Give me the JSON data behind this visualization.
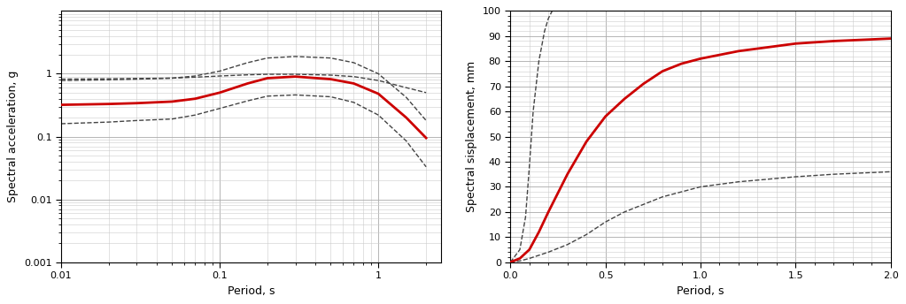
{
  "left": {
    "xlabel": "Period, s",
    "ylabel": "Spectral acceleration, g",
    "xlim": [
      0.01,
      2.5
    ],
    "ylim": [
      0.001,
      10.0
    ],
    "red_line": {
      "x": [
        0.01,
        0.02,
        0.03,
        0.05,
        0.07,
        0.1,
        0.15,
        0.2,
        0.3,
        0.5,
        0.7,
        1.0,
        1.5,
        2.0
      ],
      "y": [
        0.32,
        0.33,
        0.34,
        0.36,
        0.4,
        0.5,
        0.7,
        0.85,
        0.9,
        0.82,
        0.7,
        0.48,
        0.2,
        0.095
      ]
    },
    "dashed_upper": {
      "x": [
        0.01,
        0.02,
        0.03,
        0.05,
        0.07,
        0.1,
        0.15,
        0.2,
        0.3,
        0.5,
        0.7,
        1.0,
        1.5,
        2.0
      ],
      "y": [
        0.78,
        0.8,
        0.82,
        0.85,
        0.92,
        1.1,
        1.5,
        1.78,
        1.88,
        1.78,
        1.5,
        1.0,
        0.42,
        0.18
      ]
    },
    "dashed_mid": {
      "x": [
        0.01,
        0.02,
        0.03,
        0.05,
        0.07,
        0.1,
        0.15,
        0.2,
        0.3,
        0.5,
        0.7,
        1.0,
        1.5,
        2.0
      ],
      "y": [
        0.16,
        0.17,
        0.18,
        0.19,
        0.22,
        0.28,
        0.37,
        0.44,
        0.46,
        0.43,
        0.35,
        0.22,
        0.085,
        0.033
      ]
    },
    "dashed_lower2": {
      "x": [
        0.01,
        0.02,
        0.03,
        0.05,
        0.07,
        0.1,
        0.15,
        0.2,
        0.3,
        0.5,
        0.7,
        1.0,
        1.5,
        2.0
      ],
      "y": [
        0.82,
        0.83,
        0.84,
        0.85,
        0.88,
        0.92,
        0.96,
        0.98,
        0.98,
        0.95,
        0.9,
        0.78,
        0.6,
        0.5
      ]
    }
  },
  "right": {
    "xlabel": "Period, s",
    "ylabel": "Spectral sisplacement, mm",
    "xlim": [
      0.0,
      2.0
    ],
    "ylim": [
      0,
      100
    ],
    "red_line": {
      "x": [
        0.0,
        0.05,
        0.1,
        0.15,
        0.2,
        0.3,
        0.4,
        0.5,
        0.6,
        0.7,
        0.8,
        0.9,
        1.0,
        1.2,
        1.5,
        1.7,
        2.0
      ],
      "y": [
        0,
        1.5,
        5,
        12,
        20,
        35,
        48,
        58,
        65,
        71,
        76,
        79,
        81,
        84,
        87,
        88,
        89
      ]
    },
    "dashed_upper": {
      "x": [
        0.0,
        0.05,
        0.08,
        0.1,
        0.12,
        0.15,
        0.18,
        0.2,
        0.22,
        0.25
      ],
      "y": [
        0,
        5,
        18,
        38,
        60,
        80,
        92,
        97,
        100,
        100
      ]
    },
    "dashed_lower": {
      "x": [
        0.0,
        0.05,
        0.1,
        0.2,
        0.3,
        0.4,
        0.5,
        0.6,
        0.7,
        0.8,
        0.9,
        1.0,
        1.2,
        1.5,
        1.7,
        2.0
      ],
      "y": [
        0,
        0.5,
        1.5,
        4,
        7,
        11,
        16,
        20,
        23,
        26,
        28,
        30,
        32,
        34,
        35,
        36
      ]
    }
  },
  "line_color_red": "#cc0000",
  "line_color_dashed": "#444444",
  "background": "#ffffff",
  "grid_major_color": "#aaaaaa",
  "grid_minor_color": "#cccccc"
}
